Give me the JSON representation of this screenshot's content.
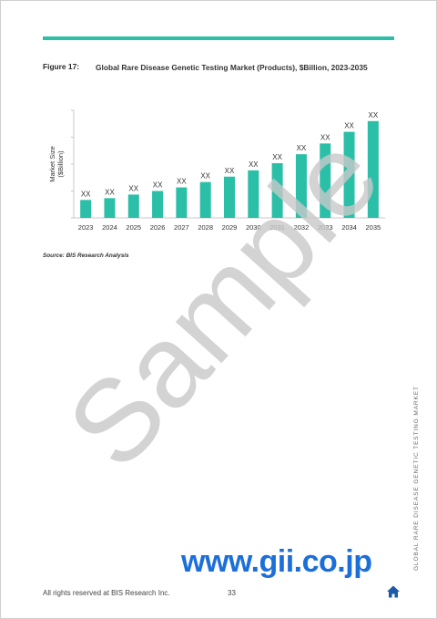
{
  "header": {
    "figure_label": "Figure 17:",
    "figure_title": "Global Rare Disease Genetic Testing Market (Products), $Billion, 2023-2035"
  },
  "chart_data": {
    "type": "bar",
    "title": "",
    "xlabel": "",
    "ylabel": "Market Size ($Billion)",
    "categories": [
      "2023",
      "2024",
      "2025",
      "2026",
      "2027",
      "2028",
      "2029",
      "2030",
      "2031",
      "2032",
      "2033",
      "2034",
      "2035"
    ],
    "values": [
      20,
      22,
      26,
      30,
      34,
      40,
      46,
      53,
      61,
      71,
      83,
      96,
      108
    ],
    "data_labels": [
      "XX",
      "XX",
      "XX",
      "XX",
      "XX",
      "XX",
      "XX",
      "XX",
      "XX",
      "XX",
      "XX",
      "XX",
      "XX"
    ],
    "ylim": [
      0,
      120
    ],
    "grid": false,
    "bar_color": "#2bbfa8"
  },
  "source": "Source: BIS Research Analysis",
  "watermark": "Sample",
  "gii_mark": "www.gii.co.jp",
  "footer": {
    "rights": "All rights reserved at BIS Research Inc.",
    "page_number": "33"
  },
  "side_title": "GLOBAL RARE DISEASE GENETIC TESTING MARKET",
  "colors": {
    "accent": "#2bbfa8",
    "gii_blue": "#1c6fd9",
    "home_icon": "#1b5aa6"
  },
  "icons": {
    "home": "home-icon"
  }
}
